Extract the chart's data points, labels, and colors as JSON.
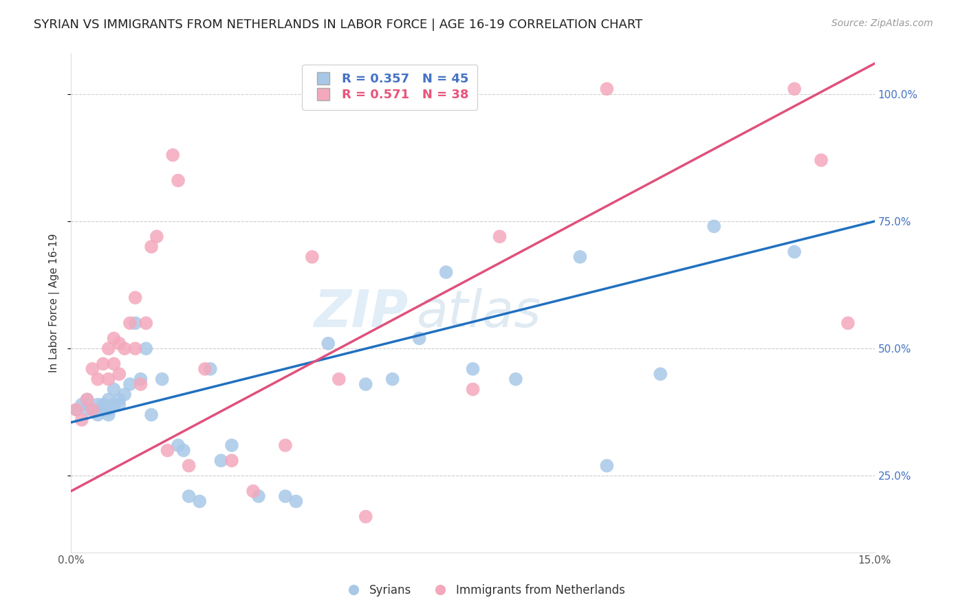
{
  "title": "SYRIAN VS IMMIGRANTS FROM NETHERLANDS IN LABOR FORCE | AGE 16-19 CORRELATION CHART",
  "source": "Source: ZipAtlas.com",
  "xlabel": "",
  "ylabel": "In Labor Force | Age 16-19",
  "xlim": [
    0.0,
    0.15
  ],
  "ylim": [
    0.1,
    1.08
  ],
  "ytick_values": [
    0.25,
    0.5,
    0.75,
    1.0
  ],
  "xtick_values": [
    0.0,
    0.15
  ],
  "legend_r1": "R = 0.357   N = 45",
  "legend_r2": "R = 0.571   N = 38",
  "syrians_color": "#a8c8e8",
  "netherlands_color": "#f4a8bc",
  "trend_blue": "#2070c0",
  "trend_pink": "#e0507a",
  "background_color": "#ffffff",
  "grid_color": "#cccccc",
  "axis_color": "#4472c4",
  "watermark_zip": "ZIP",
  "watermark_atlas": "atlas",
  "syrians_x": [
    0.001,
    0.002,
    0.003,
    0.003,
    0.004,
    0.005,
    0.005,
    0.006,
    0.006,
    0.007,
    0.007,
    0.007,
    0.008,
    0.008,
    0.009,
    0.009,
    0.01,
    0.011,
    0.012,
    0.013,
    0.014,
    0.015,
    0.017,
    0.02,
    0.021,
    0.022,
    0.024,
    0.026,
    0.028,
    0.03,
    0.035,
    0.04,
    0.042,
    0.048,
    0.055,
    0.06,
    0.065,
    0.07,
    0.075,
    0.083,
    0.095,
    0.1,
    0.11,
    0.12,
    0.135
  ],
  "syrians_y": [
    0.38,
    0.39,
    0.38,
    0.4,
    0.38,
    0.37,
    0.39,
    0.38,
    0.39,
    0.4,
    0.38,
    0.37,
    0.39,
    0.42,
    0.4,
    0.39,
    0.41,
    0.43,
    0.55,
    0.44,
    0.5,
    0.37,
    0.44,
    0.31,
    0.3,
    0.21,
    0.2,
    0.46,
    0.28,
    0.31,
    0.21,
    0.21,
    0.2,
    0.51,
    0.43,
    0.44,
    0.52,
    0.65,
    0.46,
    0.44,
    0.68,
    0.27,
    0.45,
    0.74,
    0.69
  ],
  "netherlands_x": [
    0.001,
    0.002,
    0.003,
    0.004,
    0.004,
    0.005,
    0.006,
    0.007,
    0.007,
    0.008,
    0.008,
    0.009,
    0.009,
    0.01,
    0.011,
    0.012,
    0.012,
    0.013,
    0.014,
    0.015,
    0.016,
    0.018,
    0.019,
    0.02,
    0.022,
    0.025,
    0.03,
    0.034,
    0.04,
    0.045,
    0.05,
    0.055,
    0.075,
    0.08,
    0.1,
    0.135,
    0.14,
    0.145
  ],
  "netherlands_y": [
    0.38,
    0.36,
    0.4,
    0.38,
    0.46,
    0.44,
    0.47,
    0.44,
    0.5,
    0.47,
    0.52,
    0.45,
    0.51,
    0.5,
    0.55,
    0.6,
    0.5,
    0.43,
    0.55,
    0.7,
    0.72,
    0.3,
    0.88,
    0.83,
    0.27,
    0.46,
    0.28,
    0.22,
    0.31,
    0.68,
    0.44,
    0.17,
    0.42,
    0.72,
    1.01,
    1.01,
    0.87,
    0.55
  ],
  "blue_trend_x0": 0.0,
  "blue_trend_y0": 0.355,
  "blue_trend_x1": 0.15,
  "blue_trend_y1": 0.75,
  "pink_trend_x0": 0.0,
  "pink_trend_y0": 0.22,
  "pink_trend_x1": 0.15,
  "pink_trend_y1": 1.06
}
